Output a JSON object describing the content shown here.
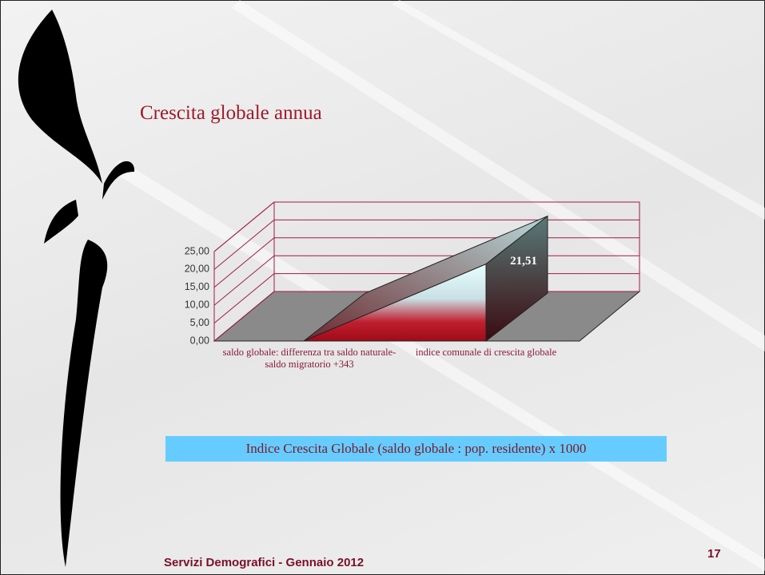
{
  "slide": {
    "title": "Crescita globale annua",
    "formula": "Indice Crescita Globale (saldo globale : pop. residente) x 1000",
    "footer": "Servizi Demografici - Gennaio 2012",
    "page_number": "17"
  },
  "chart_data": {
    "type": "area",
    "categories": [
      "saldo globale: differenza tra saldo naturale-saldo migratorio +343",
      "indice comunale di crescita globale"
    ],
    "values": [
      0,
      21.51
    ],
    "value_labels": [
      null,
      "21,51"
    ],
    "color": "#b01020",
    "ylim": [
      0,
      25
    ],
    "yticks": [
      {
        "value": 0,
        "label": "0,00"
      },
      {
        "value": 5,
        "label": "5,00"
      },
      {
        "value": 10,
        "label": "10,00"
      },
      {
        "value": 15,
        "label": "15,00"
      },
      {
        "value": 20,
        "label": "20,00"
      },
      {
        "value": 25,
        "label": "25,00"
      }
    ],
    "grid": true
  }
}
